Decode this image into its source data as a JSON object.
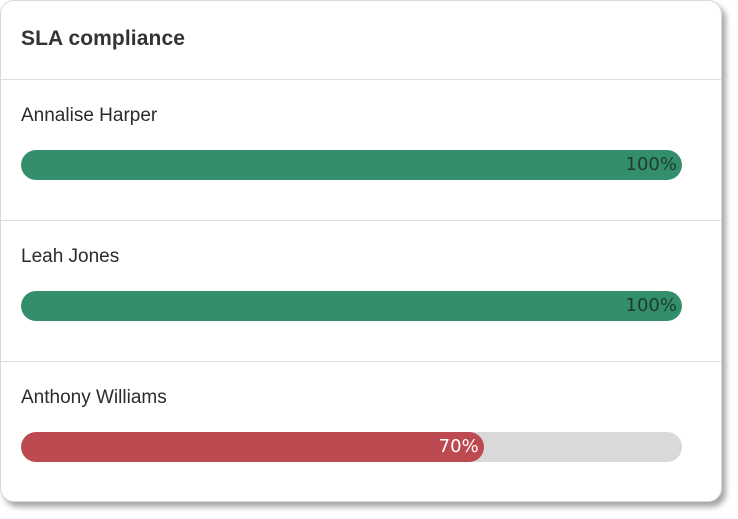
{
  "card": {
    "title": "SLA compliance"
  },
  "agents": [
    {
      "name": "Annalise Harper",
      "percent": 100,
      "percent_label": "100%",
      "bar_color": "#338f6b",
      "label_color": "#1f3b30"
    },
    {
      "name": "Leah Jones",
      "percent": 100,
      "percent_label": "100%",
      "bar_color": "#338f6b",
      "label_color": "#1f3b30"
    },
    {
      "name": "Anthony Williams",
      "percent": 70,
      "percent_label": "70%",
      "bar_color": "#bc4a50",
      "label_color": "#ffffff"
    }
  ],
  "colors": {
    "track": "#d9d9d9",
    "good": "#338f6b",
    "bad": "#bc4a50"
  }
}
